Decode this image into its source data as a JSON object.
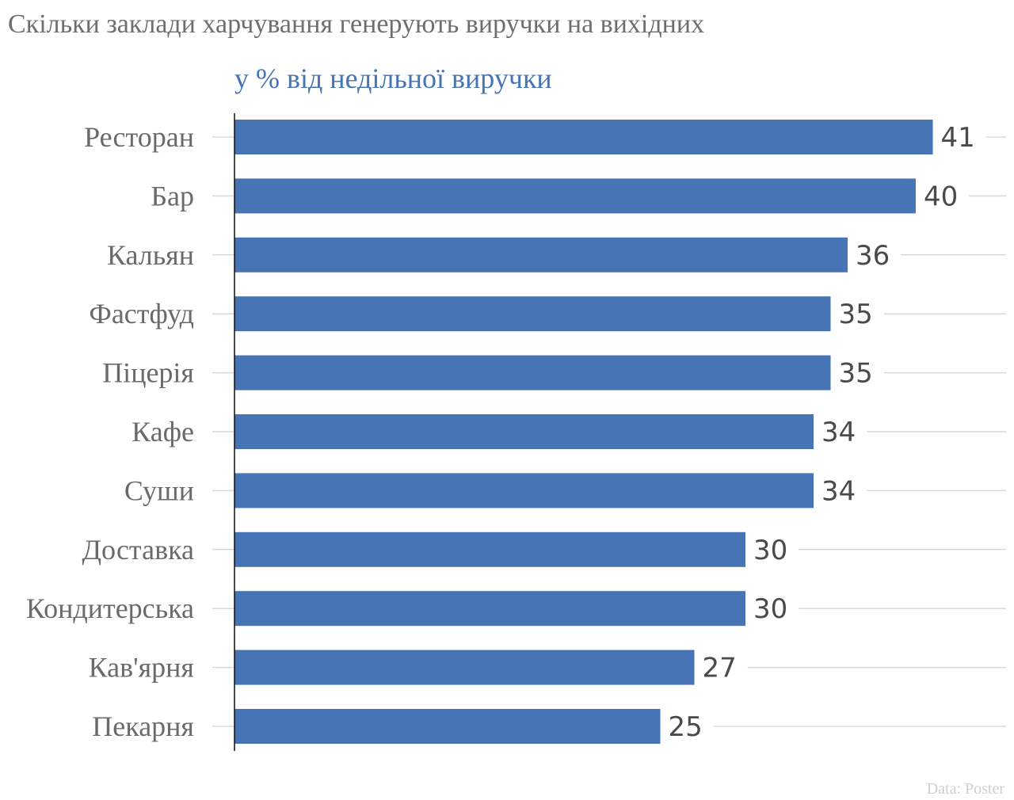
{
  "colors": {
    "bar": "#4674b4",
    "subtitle": "#4674b4",
    "title": "#6e6e6e",
    "grid": "#d9d9d9",
    "axis": "#111111",
    "source": "#cfcfcf"
  },
  "source": "Data: Poster",
  "chart_data": {
    "type": "bar",
    "orientation": "horizontal",
    "title": "Скільки заклади харчування генерують виручки на вихідних",
    "subtitle": "у % від недільної виручки",
    "categories": [
      "Ресторан",
      "Бар",
      "Кальян",
      "Фастфуд",
      "Піцерія",
      "Кафе",
      "Суши",
      "Доставка",
      "Кондитерська",
      "Кав'ярня",
      "Пекарня"
    ],
    "values": [
      41,
      40,
      36,
      35,
      35,
      34,
      34,
      30,
      30,
      27,
      25
    ],
    "xlim": [
      0,
      45
    ],
    "grid": true,
    "legend": "none"
  }
}
